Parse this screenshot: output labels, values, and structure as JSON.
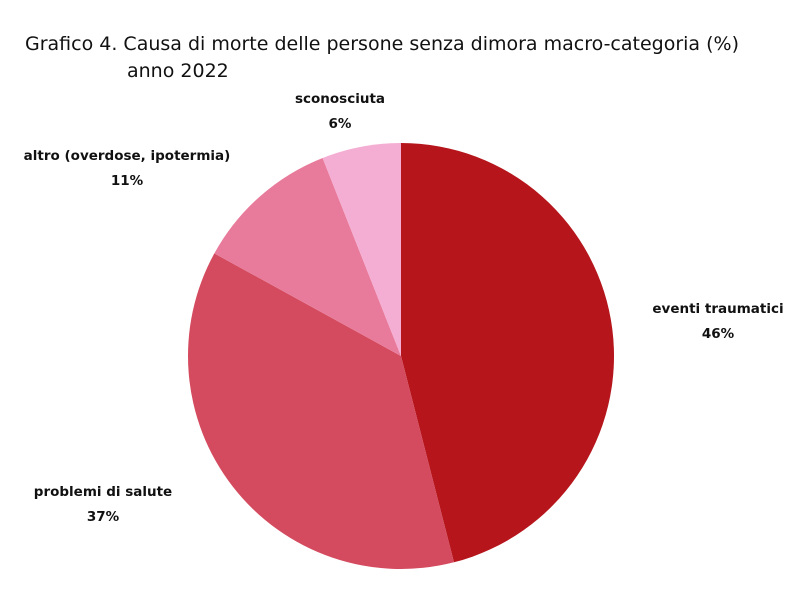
{
  "chart_data": {
    "type": "pie",
    "title": "Grafico 4.  Causa di morte delle persone senza dimora macro-categoria (%)",
    "subtitle": "anno 2022",
    "categories": [
      "eventi traumatici",
      "problemi di salute",
      "altro (overdose, ipotermia)",
      "sconosciuta"
    ],
    "values": [
      46,
      37,
      11,
      6
    ],
    "value_labels": [
      "46%",
      "37%",
      "11%",
      "6%"
    ],
    "colors": [
      "#b5151b",
      "#d44a5e",
      "#e87b9b",
      "#f5aed3"
    ]
  }
}
